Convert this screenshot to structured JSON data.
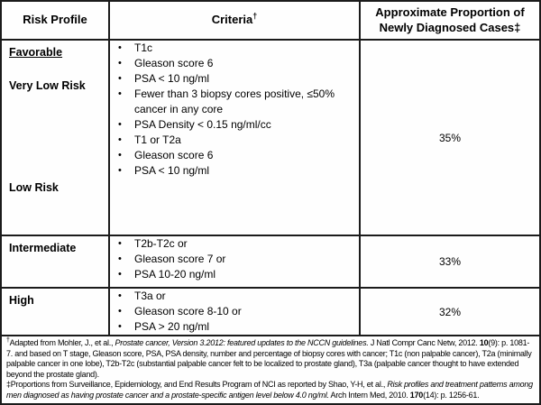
{
  "colors": {
    "border": "#1b1b1b",
    "text": "#000000",
    "background": "#fefefe"
  },
  "header": {
    "risk_profile": "Risk Profile",
    "criteria": "Criteria",
    "criteria_mark": "†",
    "proportion": "Approximate Proportion of Newly Diagnosed Cases‡"
  },
  "sections": {
    "favorable": {
      "group_label": "Favorable",
      "very_low": {
        "label": "Very Low Risk",
        "criteria": [
          "T1c",
          "Gleason score 6",
          "PSA < 10 ng/ml",
          "Fewer than 3 biopsy cores positive, ≤50% cancer in any core",
          "PSA Density < 0.15 ng/ml/cc"
        ]
      },
      "low": {
        "label": "Low Risk",
        "criteria": [
          "T1 or T2a",
          "Gleason score 6",
          "PSA < 10 ng/ml"
        ]
      },
      "proportion": "35%"
    },
    "intermediate": {
      "label": "Intermediate",
      "criteria": [
        "T2b-T2c or",
        "Gleason score 7 or",
        "PSA 10-20 ng/ml"
      ],
      "proportion": "33%"
    },
    "high": {
      "label": "High",
      "criteria": [
        "T3a or",
        "Gleason score 8-10 or",
        "PSA > 20 ng/ml"
      ],
      "proportion": "32%"
    }
  },
  "footnotes": {
    "fn1": {
      "mark": "†",
      "t1": "Adapted  from Mohler, J., et al., ",
      "i1": "Prostate cancer, Version 3.2012: featured updates to the NCCN guidelines.",
      "t2": " J Natl Compr Canc Netw, 2012. ",
      "b1": "10",
      "t3": "(9): p. 1081-7.  and based on T stage, Gleason score, PSA, PSA density, number and percentage of biopsy cores with cancer; T1c (non palpable cancer), T2a (minimally palpable cancer in one lobe), T2b-T2c (substantial palpable cancer felt to be localized to prostate gland), T3a (palpable cancer thought to have extended beyond the prostate gland)."
    },
    "fn2": {
      "mark": "‡",
      "t1": "Proportions from Surveillance, Epidemiology, and End Results Program of NCI as reported by Shao, Y-H, et al., ",
      "i1": "Risk profiles and treatment patterns among men diagnosed as having prostate cancer and a prostate-specific antigen level below 4.0 ng/ml.",
      "t2": " Arch Intern Med, 2010. ",
      "b1": "170",
      "t3": "(14): p. 1256-61."
    }
  }
}
